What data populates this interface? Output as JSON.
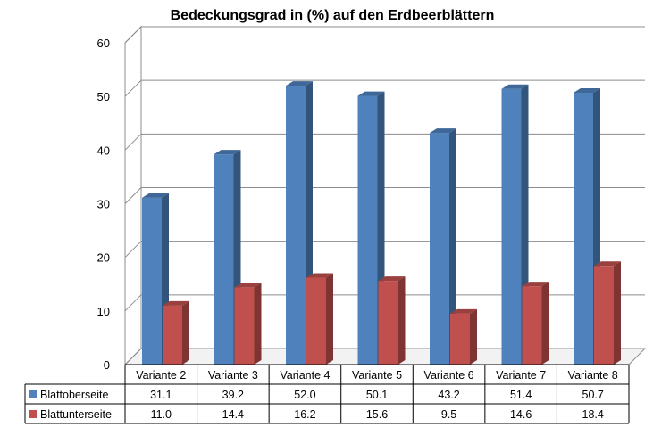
{
  "chart_data": {
    "type": "bar",
    "title": "Bedeckungsgrad in (%) auf den Erdbeerblättern",
    "xlabel": "",
    "ylabel": "",
    "ylim": [
      0,
      60
    ],
    "yticks": [
      "0",
      "10",
      "20",
      "30",
      "40",
      "50",
      "60"
    ],
    "grid": true,
    "legend": "table-left",
    "categories": [
      "Variante 2",
      "Variante 3",
      "Variante 4",
      "Variante 5",
      "Variante 6",
      "Variante 7",
      "Variante 8"
    ],
    "series": [
      {
        "name": "Blattoberseite",
        "color": "#4F81BD",
        "values": [
          31.1,
          39.2,
          52.0,
          50.1,
          43.2,
          51.4,
          50.7
        ],
        "labels": [
          "31.1",
          "39.2",
          "52.0",
          "50.1",
          "43.2",
          "51.4",
          "50.7"
        ]
      },
      {
        "name": "Blattunterseite",
        "color": "#C0504D",
        "values": [
          11.0,
          14.4,
          16.2,
          15.6,
          9.5,
          14.6,
          18.4
        ],
        "labels": [
          "11.0",
          "14.4",
          "16.2",
          "15.6",
          "9.5",
          "14.6",
          "18.4"
        ]
      }
    ]
  }
}
